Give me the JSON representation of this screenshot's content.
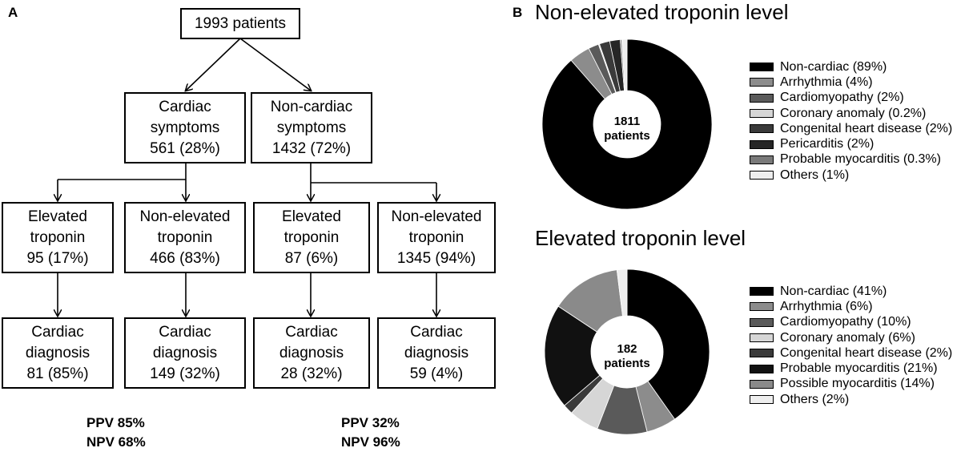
{
  "panel_a": {
    "letter": "A",
    "root": "1993 patients",
    "cardiac_symptoms": [
      "Cardiac",
      "symptoms",
      "561 (28%)"
    ],
    "noncardiac_symptoms": [
      "Non-cardiac",
      "symptoms",
      "1432 (72%)"
    ],
    "row2": [
      [
        "Elevated",
        "troponin",
        "95 (17%)"
      ],
      [
        "Non-elevated",
        "troponin",
        "466 (83%)"
      ],
      [
        "Elevated",
        "troponin",
        "87 (6%)"
      ],
      [
        "Non-elevated",
        "troponin",
        "1345 (94%)"
      ]
    ],
    "row3": [
      [
        "Cardiac",
        "diagnosis",
        "81 (85%)"
      ],
      [
        "Cardiac",
        "diagnosis",
        "149 (32%)"
      ],
      [
        "Cardiac",
        "diagnosis",
        "28 (32%)"
      ],
      [
        "Cardiac",
        "diagnosis",
        "59 (4%)"
      ]
    ],
    "stats_left": [
      "PPV 85%",
      "NPV 68%"
    ],
    "stats_right": [
      "PPV 32%",
      "NPV 96%"
    ]
  },
  "panel_b": {
    "letter": "B",
    "top": {
      "title": "Non-elevated troponin level",
      "center": [
        "1811",
        "patients"
      ],
      "legend": [
        {
          "label": "Non-cardiac (89%)",
          "value": 89,
          "color": "#000000"
        },
        {
          "label": "Arrhythmia (4%)",
          "value": 4,
          "color": "#8c8c8c"
        },
        {
          "label": "Cardiomyopathy (2%)",
          "value": 2,
          "color": "#5a5a5a"
        },
        {
          "label": "Coronary anomaly (0.2%)",
          "value": 0.2,
          "color": "#d6d6d6"
        },
        {
          "label": "Congenital heart disease (2%)",
          "value": 2,
          "color": "#3a3a3a"
        },
        {
          "label": "Pericarditis (2%)",
          "value": 2,
          "color": "#262626"
        },
        {
          "label": "Probable myocarditis (0.3%)",
          "value": 0.3,
          "color": "#7a7a7a"
        },
        {
          "label": "Others (1%)",
          "value": 1,
          "color": "#eeeeee"
        }
      ]
    },
    "bottom": {
      "title": "Elevated troponin level",
      "center": [
        "182",
        "patients"
      ],
      "legend": [
        {
          "label": "Non-cardiac (41%)",
          "value": 41,
          "color": "#000000"
        },
        {
          "label": "Arrhythmia (6%)",
          "value": 6,
          "color": "#8c8c8c"
        },
        {
          "label": "Cardiomyopathy (10%)",
          "value": 10,
          "color": "#5a5a5a"
        },
        {
          "label": "Coronary anomaly (6%)",
          "value": 6,
          "color": "#d6d6d6"
        },
        {
          "label": "Congenital heart disease (2%)",
          "value": 2,
          "color": "#3a3a3a"
        },
        {
          "label": "Probable myocarditis (21%)",
          "value": 21,
          "color": "#111111"
        },
        {
          "label": "Possible myocarditis (14%)",
          "value": 14,
          "color": "#8a8a8a"
        },
        {
          "label": "Others (2%)",
          "value": 2,
          "color": "#eeeeee"
        }
      ]
    }
  }
}
